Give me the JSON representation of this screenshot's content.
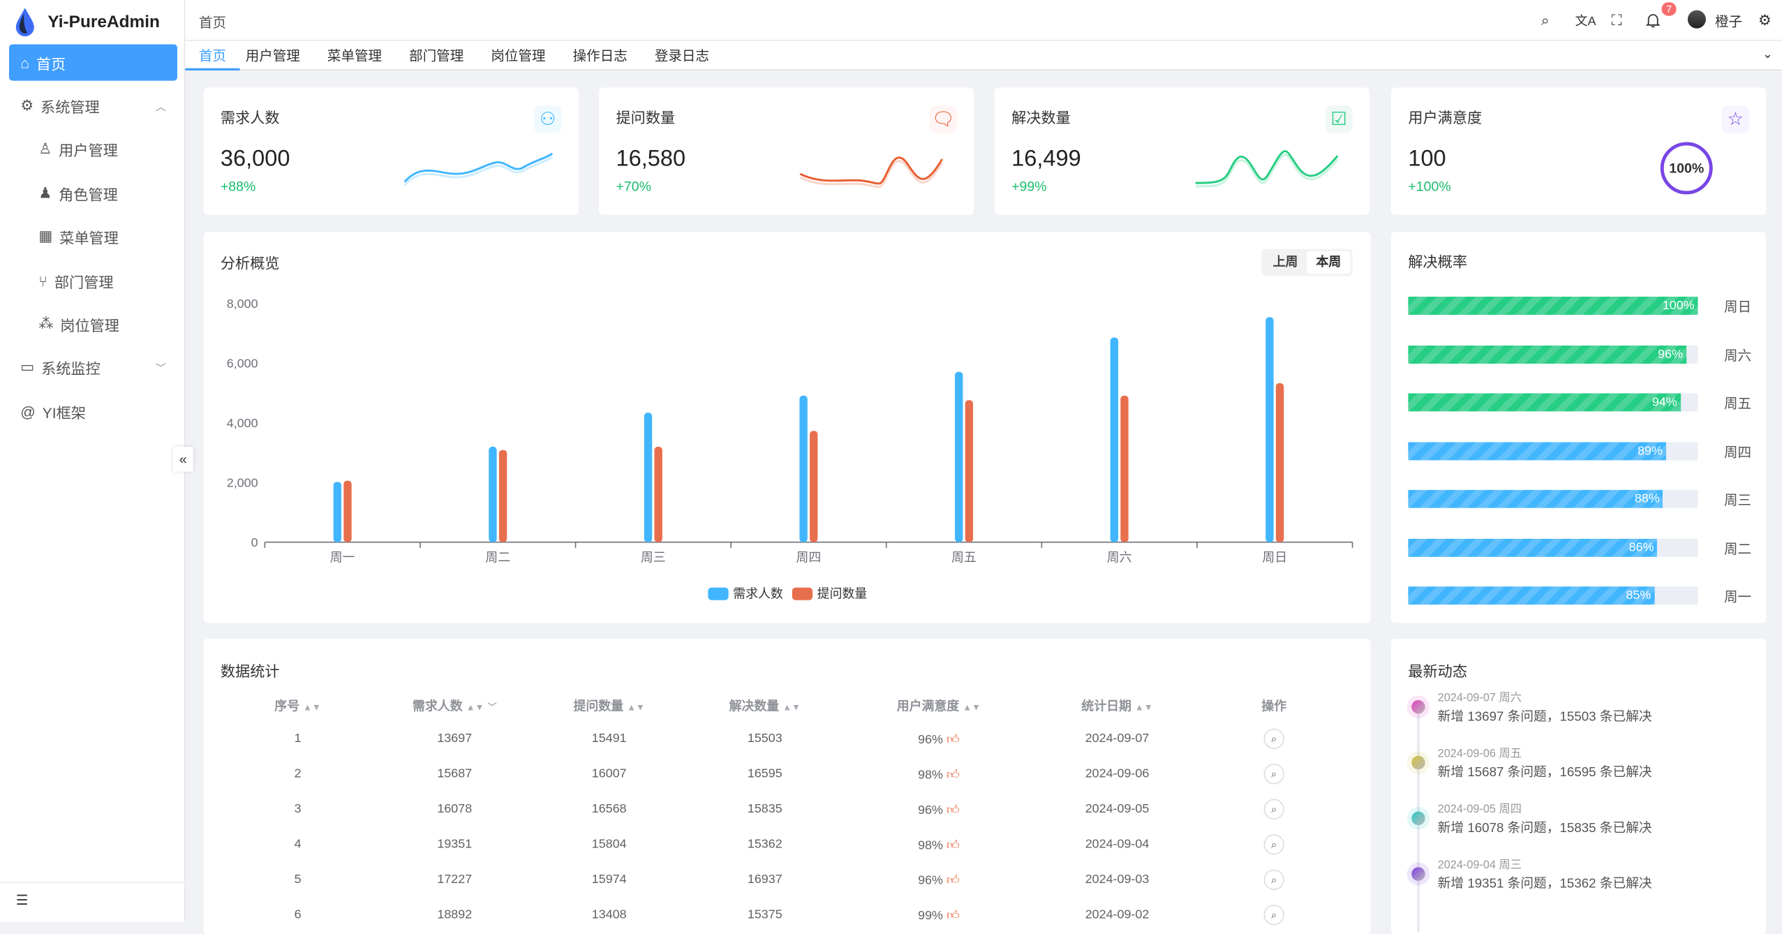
{
  "app": {
    "title": "Yi-PureAdmin"
  },
  "sidebar": {
    "items": [
      {
        "label": "首页",
        "icon": "home-icon",
        "active": true
      },
      {
        "label": "系统管理",
        "icon": "gear-icon",
        "expanded": true
      },
      {
        "label": "用户管理",
        "icon": "user-icon",
        "sub": true
      },
      {
        "label": "角色管理",
        "icon": "role-icon",
        "sub": true
      },
      {
        "label": "菜单管理",
        "icon": "menu-grid-icon",
        "sub": true
      },
      {
        "label": "部门管理",
        "icon": "branch-icon",
        "sub": true
      },
      {
        "label": "岗位管理",
        "icon": "org-icon",
        "sub": true
      },
      {
        "label": "系统监控",
        "icon": "monitor-icon"
      },
      {
        "label": "YI框架",
        "icon": "at-icon"
      }
    ]
  },
  "header": {
    "breadcrumb": "首页",
    "username": "橙子",
    "notification_count": "7"
  },
  "tabs": [
    "首页",
    "用户管理",
    "菜单管理",
    "部门管理",
    "岗位管理",
    "操作日志",
    "登录日志"
  ],
  "stats": [
    {
      "title": "需求人数",
      "value": "36,000",
      "pct": "+88%",
      "color": "#41b6ff",
      "bg": "#effaff",
      "icon": "users-icon"
    },
    {
      "title": "提问数量",
      "value": "16,580",
      "pct": "+70%",
      "color": "#e85f33",
      "bg": "#fff5f4",
      "icon": "chat-icon"
    },
    {
      "title": "解决数量",
      "value": "16,499",
      "pct": "+99%",
      "color": "#26ce83",
      "bg": "#eff8f4",
      "icon": "check-message-icon"
    },
    {
      "title": "用户满意度",
      "value": "100",
      "pct": "+100%",
      "color": "#7846e5",
      "bg": "#f6f4fe",
      "icon": "star-icon",
      "ring": "100%"
    }
  ],
  "overview": {
    "title": "分析概览",
    "toggle": [
      "上周",
      "本周"
    ],
    "selected": "本周"
  },
  "chart_data": {
    "type": "bar",
    "categories": [
      "周一",
      "周二",
      "周三",
      "周四",
      "周五",
      "周六",
      "周日"
    ],
    "series": [
      {
        "name": "需求人数",
        "values": [
          2020,
          3200,
          4340,
          4910,
          5710,
          6860,
          7540
        ],
        "color": "#41b6ff"
      },
      {
        "name": "提问数量",
        "values": [
          2060,
          3090,
          3200,
          3730,
          4760,
          4910,
          5330
        ],
        "color": "#e86f4e"
      }
    ],
    "yticks": [
      "0",
      "2,000",
      "4,000",
      "6,000",
      "8,000"
    ],
    "ylim": [
      0,
      8000
    ],
    "legend": "bottom"
  },
  "rate": {
    "title": "解决概率",
    "items": [
      {
        "day": "周日",
        "pct": 100,
        "label": "100%",
        "color": "#26ce83"
      },
      {
        "day": "周六",
        "pct": 96,
        "label": "96%",
        "color": "#26ce83"
      },
      {
        "day": "周五",
        "pct": 94,
        "label": "94%",
        "color": "#26ce83"
      },
      {
        "day": "周四",
        "pct": 89,
        "label": "89%",
        "color": "#41b6ff"
      },
      {
        "day": "周三",
        "pct": 88,
        "label": "88%",
        "color": "#41b6ff"
      },
      {
        "day": "周二",
        "pct": 86,
        "label": "86%",
        "color": "#41b6ff"
      },
      {
        "day": "周一",
        "pct": 85,
        "label": "85%",
        "color": "#41b6ff"
      }
    ]
  },
  "table": {
    "title": "数据统计",
    "columns": [
      "序号",
      "需求人数",
      "提问数量",
      "解决数量",
      "用户满意度",
      "统计日期",
      "操作"
    ],
    "rows": [
      [
        "1",
        "13697",
        "15491",
        "15503",
        "96%",
        "2024-09-07"
      ],
      [
        "2",
        "15687",
        "16007",
        "16595",
        "98%",
        "2024-09-06"
      ],
      [
        "3",
        "16078",
        "16568",
        "15835",
        "96%",
        "2024-09-05"
      ],
      [
        "4",
        "19351",
        "15804",
        "15362",
        "98%",
        "2024-09-04"
      ],
      [
        "5",
        "17227",
        "15974",
        "16937",
        "96%",
        "2024-09-03"
      ],
      [
        "6",
        "18892",
        "13408",
        "15375",
        "99%",
        "2024-09-02"
      ]
    ]
  },
  "timeline": {
    "title": "最新动态",
    "items": [
      {
        "date": "2024-09-07 周六",
        "text": "新增 13697 条问题，15503 条已解决",
        "color": "#e040c0"
      },
      {
        "date": "2024-09-06 周五",
        "text": "新增 15687 条问题，16595 条已解决",
        "color": "#d4c040"
      },
      {
        "date": "2024-09-05 周四",
        "text": "新增 16078 条问题，15835 条已解决",
        "color": "#30c8c8"
      },
      {
        "date": "2024-09-04 周三",
        "text": "新增 19351 条问题，15362 条已解决",
        "color": "#8040e0"
      }
    ]
  }
}
